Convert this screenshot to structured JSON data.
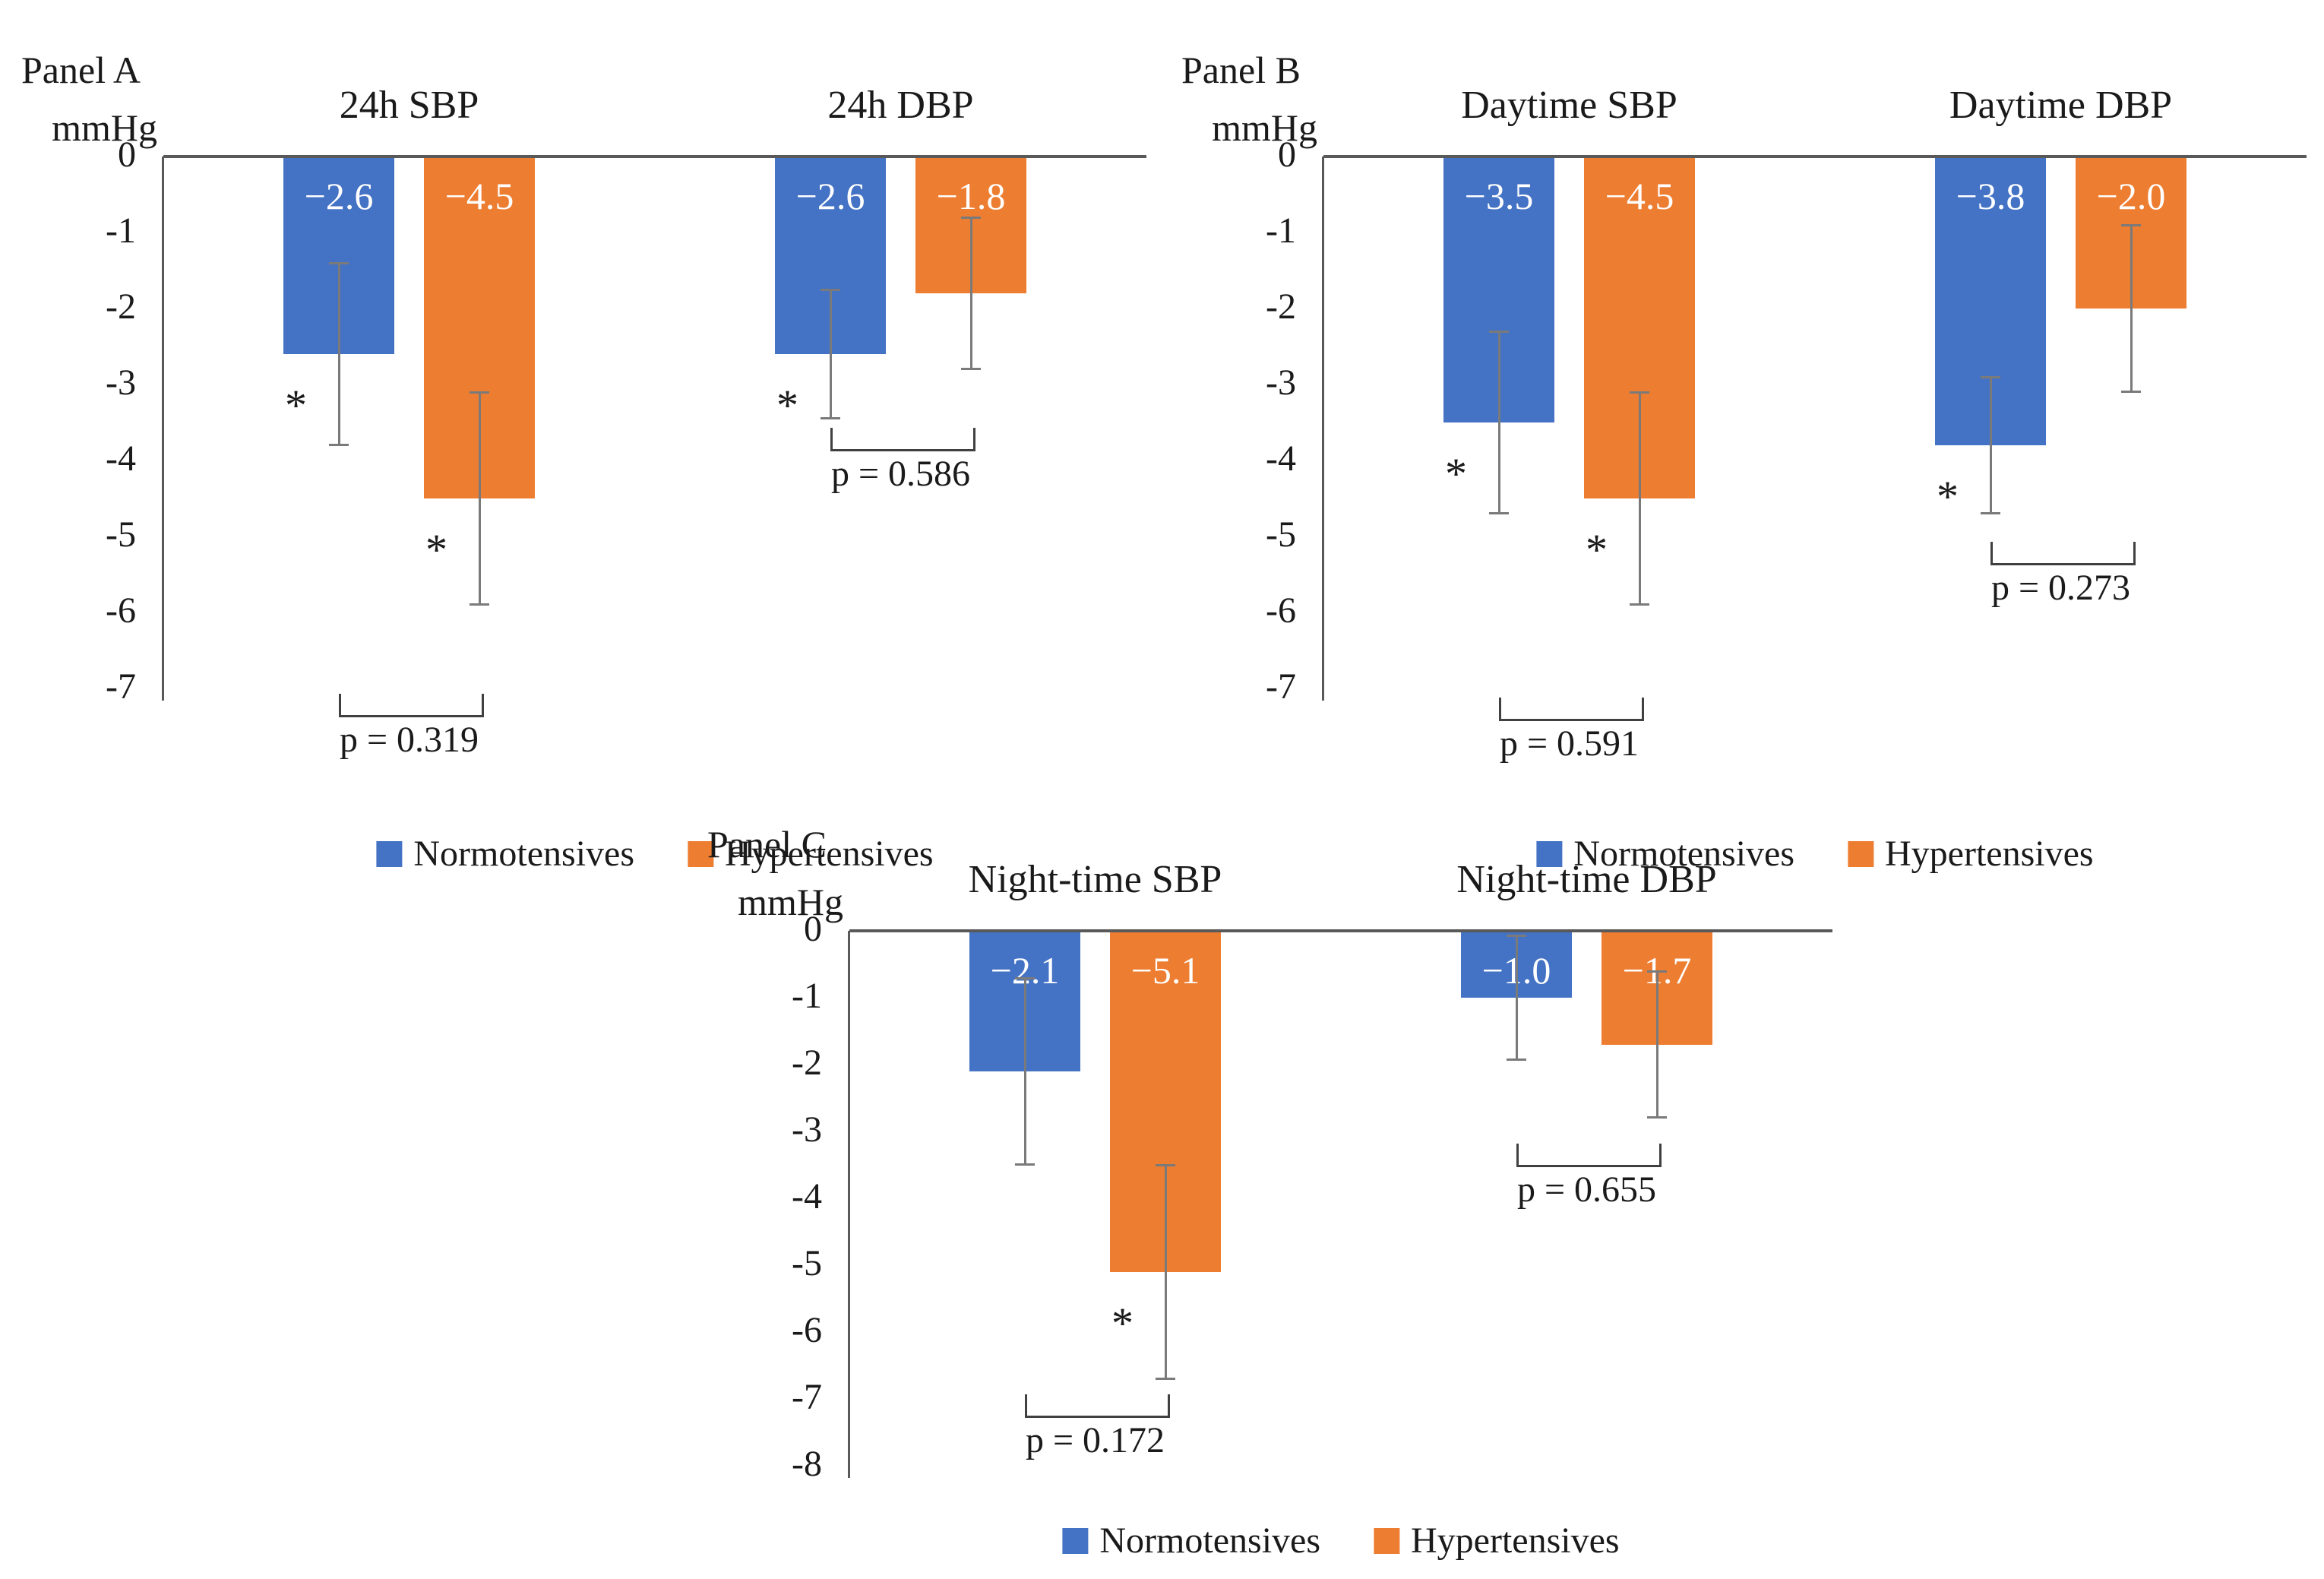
{
  "figure": {
    "significance_marker": "*",
    "axis_unit_label": "mmHg"
  },
  "colors": {
    "normotensives": "#4472C4",
    "hypertensives": "#ED7D31",
    "axis": "#595959",
    "error_bar": "#7a7a7a",
    "bracket": "#404040",
    "text": "#1a1a1a",
    "bar_label": "#ffffff"
  },
  "legend": {
    "normotensives": "Normotensives",
    "hypertensives": "Hypertensives"
  },
  "chart_data": [
    {
      "type": "bar",
      "panel_label": "Panel A",
      "axis_label": "mmHg",
      "ylabel": "mmHg",
      "ylim": [
        0,
        -7
      ],
      "grid": false,
      "legend_position": "bottom",
      "yticks": [
        "0",
        "-1",
        "-2",
        "-3",
        "-4",
        "-5",
        "-6",
        "-7"
      ],
      "series": [
        "Normotensives",
        "Hypertensives"
      ],
      "groups": [
        {
          "title": "24h SBP",
          "p_label": "p = 0.319",
          "p_value": 0.319,
          "bracket_y": -7.35,
          "bars": [
            {
              "series": "Normotensives",
              "value": -2.6,
              "label": "−2.6",
              "err": 1.2,
              "significant": true
            },
            {
              "series": "Hypertensives",
              "value": -4.5,
              "label": "−4.5",
              "err": 1.4,
              "significant": true
            }
          ]
        },
        {
          "title": "24h DBP",
          "p_label": "p = 0.586",
          "p_value": 0.586,
          "bracket_y": -3.85,
          "bars": [
            {
              "series": "Normotensives",
              "value": -2.6,
              "label": "−2.6",
              "err": 0.85,
              "significant": true
            },
            {
              "series": "Hypertensives",
              "value": -1.8,
              "label": "−1.8",
              "err": 1.0,
              "significant": false
            }
          ]
        }
      ]
    },
    {
      "type": "bar",
      "panel_label": "Panel B",
      "axis_label": "mmHg",
      "ylabel": "mmHg",
      "ylim": [
        0,
        -7
      ],
      "grid": false,
      "legend_position": "bottom",
      "yticks": [
        "0",
        "-1",
        "-2",
        "-3",
        "-4",
        "-5",
        "-6",
        "-7"
      ],
      "series": [
        "Normotensives",
        "Hypertensives"
      ],
      "groups": [
        {
          "title": "Daytime SBP",
          "p_label": "p = 0.591",
          "p_value": 0.591,
          "bracket_y": -7.4,
          "bars": [
            {
              "series": "Normotensives",
              "value": -3.5,
              "label": "−3.5",
              "err": 1.2,
              "significant": true
            },
            {
              "series": "Hypertensives",
              "value": -4.5,
              "label": "−4.5",
              "err": 1.4,
              "significant": true
            }
          ]
        },
        {
          "title": "Daytime DBP",
          "p_label": "p = 0.273",
          "p_value": 0.273,
          "bracket_y": -5.35,
          "bars": [
            {
              "series": "Normotensives",
              "value": -3.8,
              "label": "−3.8",
              "err": 0.9,
              "significant": true
            },
            {
              "series": "Hypertensives",
              "value": -2.0,
              "label": "−2.0",
              "err": 1.1,
              "significant": false
            }
          ]
        }
      ]
    },
    {
      "type": "bar",
      "panel_label": "Panel C",
      "axis_label": "mmHg",
      "ylabel": "mmHg",
      "ylim": [
        0,
        -8
      ],
      "grid": false,
      "legend_position": "bottom",
      "yticks": [
        "0",
        "-1",
        "-2",
        "-3",
        "-4",
        "-5",
        "-6",
        "-7",
        "-8"
      ],
      "series": [
        "Normotensives",
        "Hypertensives"
      ],
      "groups": [
        {
          "title": "Night-time SBP",
          "p_label": "p = 0.172",
          "p_value": 0.172,
          "bracket_y": -7.25,
          "bars": [
            {
              "series": "Normotensives",
              "value": -2.1,
              "label": "−2.1",
              "err": 1.4,
              "significant": false
            },
            {
              "series": "Hypertensives",
              "value": -5.1,
              "label": "−5.1",
              "err": 1.6,
              "significant": true
            }
          ]
        },
        {
          "title": "Night-time DBP",
          "p_label": "p = 0.655",
          "p_value": 0.655,
          "bracket_y": -3.5,
          "bars": [
            {
              "series": "Normotensives",
              "value": -1.0,
              "label": "−1.0",
              "err": 0.93,
              "significant": false
            },
            {
              "series": "Hypertensives",
              "value": -1.7,
              "label": "−1.7",
              "err": 1.1,
              "significant": false
            }
          ]
        }
      ]
    }
  ]
}
